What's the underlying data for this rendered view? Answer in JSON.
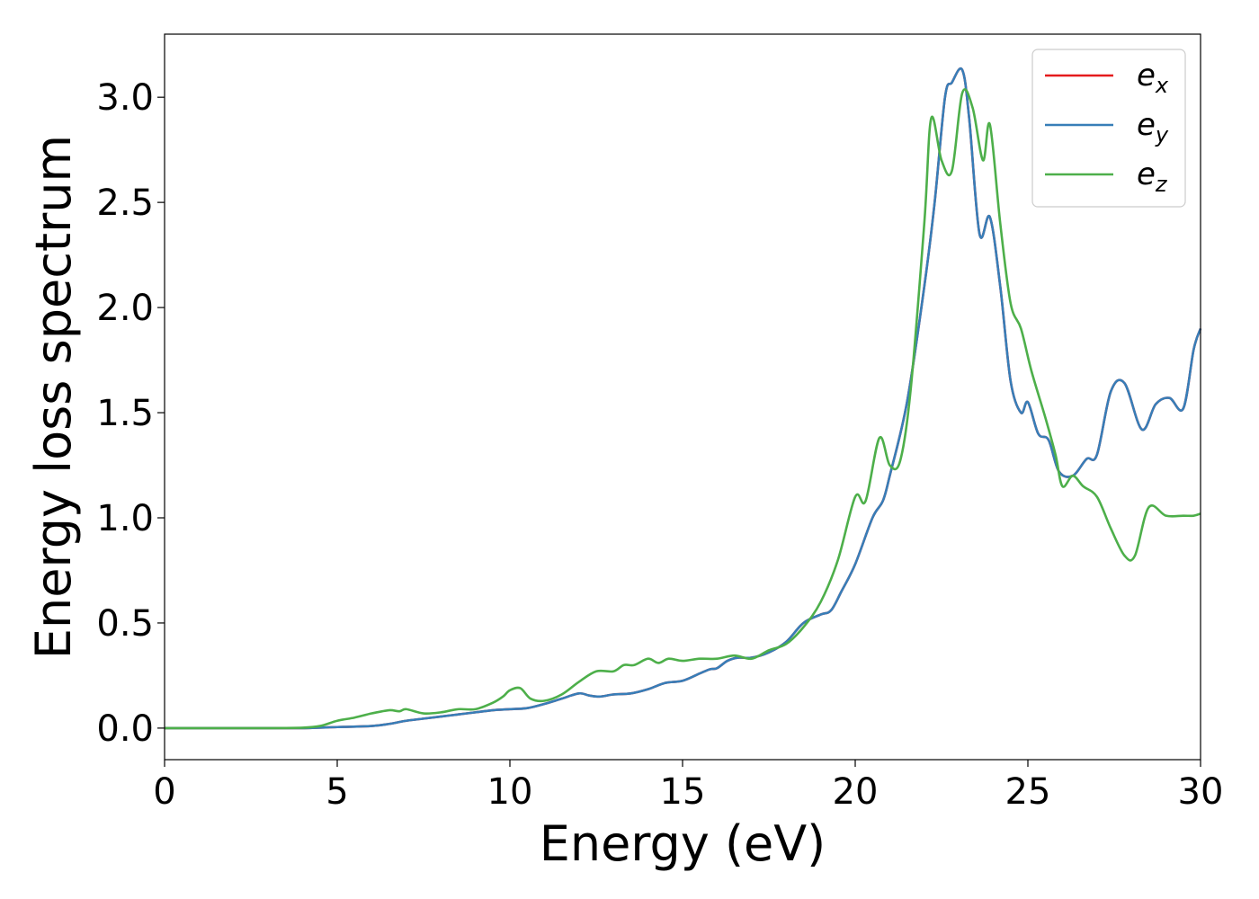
{
  "chart_data": {
    "type": "line",
    "xlabel": "Energy (eV)",
    "ylabel": "Energy loss spectrum",
    "xlim": [
      0,
      30
    ],
    "ylim": [
      -0.15,
      3.3
    ],
    "xticks": [
      0,
      5,
      10,
      15,
      20,
      25,
      30
    ],
    "xtick_labels": [
      "0",
      "5",
      "10",
      "15",
      "20",
      "25",
      "30"
    ],
    "yticks": [
      0.0,
      0.5,
      1.0,
      1.5,
      2.0,
      2.5,
      3.0
    ],
    "ytick_labels": [
      "0.0",
      "0.5",
      "1.0",
      "1.5",
      "2.0",
      "2.5",
      "3.0"
    ],
    "grid": false,
    "legend_position": "top-right",
    "series": [
      {
        "name": "e",
        "subscript": "x",
        "color": "#e41a1c",
        "points": [
          [
            0,
            0
          ],
          [
            3,
            0
          ],
          [
            4,
            0
          ],
          [
            5,
            0.005
          ],
          [
            6,
            0.01
          ],
          [
            6.5,
            0.02
          ],
          [
            7,
            0.035
          ],
          [
            7.5,
            0.045
          ],
          [
            8,
            0.055
          ],
          [
            8.5,
            0.065
          ],
          [
            9,
            0.075
          ],
          [
            9.5,
            0.085
          ],
          [
            10,
            0.09
          ],
          [
            10.5,
            0.095
          ],
          [
            11,
            0.115
          ],
          [
            11.5,
            0.14
          ],
          [
            12,
            0.165
          ],
          [
            12.3,
            0.155
          ],
          [
            12.6,
            0.15
          ],
          [
            13,
            0.16
          ],
          [
            13.5,
            0.165
          ],
          [
            14,
            0.185
          ],
          [
            14.5,
            0.215
          ],
          [
            15,
            0.225
          ],
          [
            15.5,
            0.26
          ],
          [
            15.8,
            0.28
          ],
          [
            16,
            0.285
          ],
          [
            16.3,
            0.32
          ],
          [
            16.6,
            0.335
          ],
          [
            17,
            0.335
          ],
          [
            17.5,
            0.36
          ],
          [
            18,
            0.41
          ],
          [
            18.5,
            0.5
          ],
          [
            19,
            0.54
          ],
          [
            19.3,
            0.56
          ],
          [
            19.6,
            0.65
          ],
          [
            20,
            0.78
          ],
          [
            20.5,
            1.0
          ],
          [
            20.8,
            1.08
          ],
          [
            21,
            1.2
          ],
          [
            21.5,
            1.55
          ],
          [
            22,
            2.1
          ],
          [
            22.3,
            2.5
          ],
          [
            22.6,
            3.0
          ],
          [
            22.8,
            3.07
          ],
          [
            23.1,
            3.13
          ],
          [
            23.3,
            2.9
          ],
          [
            23.6,
            2.35
          ],
          [
            23.9,
            2.43
          ],
          [
            24.2,
            2.1
          ],
          [
            24.5,
            1.65
          ],
          [
            24.8,
            1.5
          ],
          [
            25,
            1.55
          ],
          [
            25.3,
            1.4
          ],
          [
            25.6,
            1.37
          ],
          [
            25.9,
            1.22
          ],
          [
            26.3,
            1.2
          ],
          [
            26.7,
            1.28
          ],
          [
            27,
            1.3
          ],
          [
            27.4,
            1.6
          ],
          [
            27.8,
            1.64
          ],
          [
            28.3,
            1.42
          ],
          [
            28.7,
            1.54
          ],
          [
            29.1,
            1.57
          ],
          [
            29.5,
            1.52
          ],
          [
            29.8,
            1.8
          ],
          [
            30,
            1.9
          ]
        ]
      },
      {
        "name": "e",
        "subscript": "y",
        "color": "#377eb8",
        "points": [
          [
            0,
            0
          ],
          [
            3,
            0
          ],
          [
            4,
            0
          ],
          [
            5,
            0.005
          ],
          [
            6,
            0.01
          ],
          [
            6.5,
            0.02
          ],
          [
            7,
            0.035
          ],
          [
            7.5,
            0.045
          ],
          [
            8,
            0.055
          ],
          [
            8.5,
            0.065
          ],
          [
            9,
            0.075
          ],
          [
            9.5,
            0.085
          ],
          [
            10,
            0.09
          ],
          [
            10.5,
            0.095
          ],
          [
            11,
            0.115
          ],
          [
            11.5,
            0.14
          ],
          [
            12,
            0.165
          ],
          [
            12.3,
            0.155
          ],
          [
            12.6,
            0.15
          ],
          [
            13,
            0.16
          ],
          [
            13.5,
            0.165
          ],
          [
            14,
            0.185
          ],
          [
            14.5,
            0.215
          ],
          [
            15,
            0.225
          ],
          [
            15.5,
            0.26
          ],
          [
            15.8,
            0.28
          ],
          [
            16,
            0.285
          ],
          [
            16.3,
            0.32
          ],
          [
            16.6,
            0.335
          ],
          [
            17,
            0.335
          ],
          [
            17.5,
            0.36
          ],
          [
            18,
            0.41
          ],
          [
            18.5,
            0.5
          ],
          [
            19,
            0.54
          ],
          [
            19.3,
            0.56
          ],
          [
            19.6,
            0.65
          ],
          [
            20,
            0.78
          ],
          [
            20.5,
            1.0
          ],
          [
            20.8,
            1.08
          ],
          [
            21,
            1.2
          ],
          [
            21.5,
            1.55
          ],
          [
            22,
            2.1
          ],
          [
            22.3,
            2.5
          ],
          [
            22.6,
            3.0
          ],
          [
            22.8,
            3.07
          ],
          [
            23.1,
            3.13
          ],
          [
            23.3,
            2.9
          ],
          [
            23.6,
            2.35
          ],
          [
            23.9,
            2.43
          ],
          [
            24.2,
            2.1
          ],
          [
            24.5,
            1.65
          ],
          [
            24.8,
            1.5
          ],
          [
            25,
            1.55
          ],
          [
            25.3,
            1.4
          ],
          [
            25.6,
            1.37
          ],
          [
            25.9,
            1.22
          ],
          [
            26.3,
            1.2
          ],
          [
            26.7,
            1.28
          ],
          [
            27,
            1.3
          ],
          [
            27.4,
            1.6
          ],
          [
            27.8,
            1.64
          ],
          [
            28.3,
            1.42
          ],
          [
            28.7,
            1.54
          ],
          [
            29.1,
            1.57
          ],
          [
            29.5,
            1.52
          ],
          [
            29.8,
            1.8
          ],
          [
            30,
            1.9
          ]
        ]
      },
      {
        "name": "e",
        "subscript": "z",
        "color": "#4daf4a",
        "points": [
          [
            0,
            0
          ],
          [
            3,
            0
          ],
          [
            4,
            0.002
          ],
          [
            4.5,
            0.01
          ],
          [
            5,
            0.035
          ],
          [
            5.5,
            0.05
          ],
          [
            6,
            0.07
          ],
          [
            6.5,
            0.085
          ],
          [
            6.8,
            0.08
          ],
          [
            7,
            0.09
          ],
          [
            7.5,
            0.07
          ],
          [
            8,
            0.075
          ],
          [
            8.5,
            0.09
          ],
          [
            9,
            0.09
          ],
          [
            9.5,
            0.12
          ],
          [
            9.8,
            0.15
          ],
          [
            10,
            0.18
          ],
          [
            10.3,
            0.19
          ],
          [
            10.6,
            0.14
          ],
          [
            11,
            0.13
          ],
          [
            11.5,
            0.16
          ],
          [
            12,
            0.22
          ],
          [
            12.5,
            0.27
          ],
          [
            13,
            0.27
          ],
          [
            13.3,
            0.3
          ],
          [
            13.6,
            0.3
          ],
          [
            14,
            0.33
          ],
          [
            14.3,
            0.31
          ],
          [
            14.6,
            0.33
          ],
          [
            15,
            0.32
          ],
          [
            15.5,
            0.33
          ],
          [
            16,
            0.33
          ],
          [
            16.5,
            0.345
          ],
          [
            17,
            0.33
          ],
          [
            17.5,
            0.37
          ],
          [
            18,
            0.4
          ],
          [
            18.5,
            0.48
          ],
          [
            19,
            0.6
          ],
          [
            19.5,
            0.8
          ],
          [
            20,
            1.1
          ],
          [
            20.3,
            1.08
          ],
          [
            20.7,
            1.38
          ],
          [
            21,
            1.25
          ],
          [
            21.3,
            1.27
          ],
          [
            21.6,
            1.6
          ],
          [
            22,
            2.4
          ],
          [
            22.2,
            2.9
          ],
          [
            22.5,
            2.7
          ],
          [
            22.8,
            2.65
          ],
          [
            23.1,
            3.02
          ],
          [
            23.4,
            2.95
          ],
          [
            23.7,
            2.7
          ],
          [
            23.9,
            2.87
          ],
          [
            24.2,
            2.4
          ],
          [
            24.5,
            2.02
          ],
          [
            24.8,
            1.9
          ],
          [
            25.1,
            1.7
          ],
          [
            25.5,
            1.48
          ],
          [
            25.8,
            1.3
          ],
          [
            26,
            1.15
          ],
          [
            26.3,
            1.2
          ],
          [
            26.6,
            1.15
          ],
          [
            27,
            1.1
          ],
          [
            27.4,
            0.95
          ],
          [
            27.8,
            0.82
          ],
          [
            28.1,
            0.82
          ],
          [
            28.5,
            1.05
          ],
          [
            29,
            1.01
          ],
          [
            29.5,
            1.01
          ],
          [
            29.8,
            1.01
          ],
          [
            30,
            1.02
          ]
        ]
      }
    ]
  }
}
